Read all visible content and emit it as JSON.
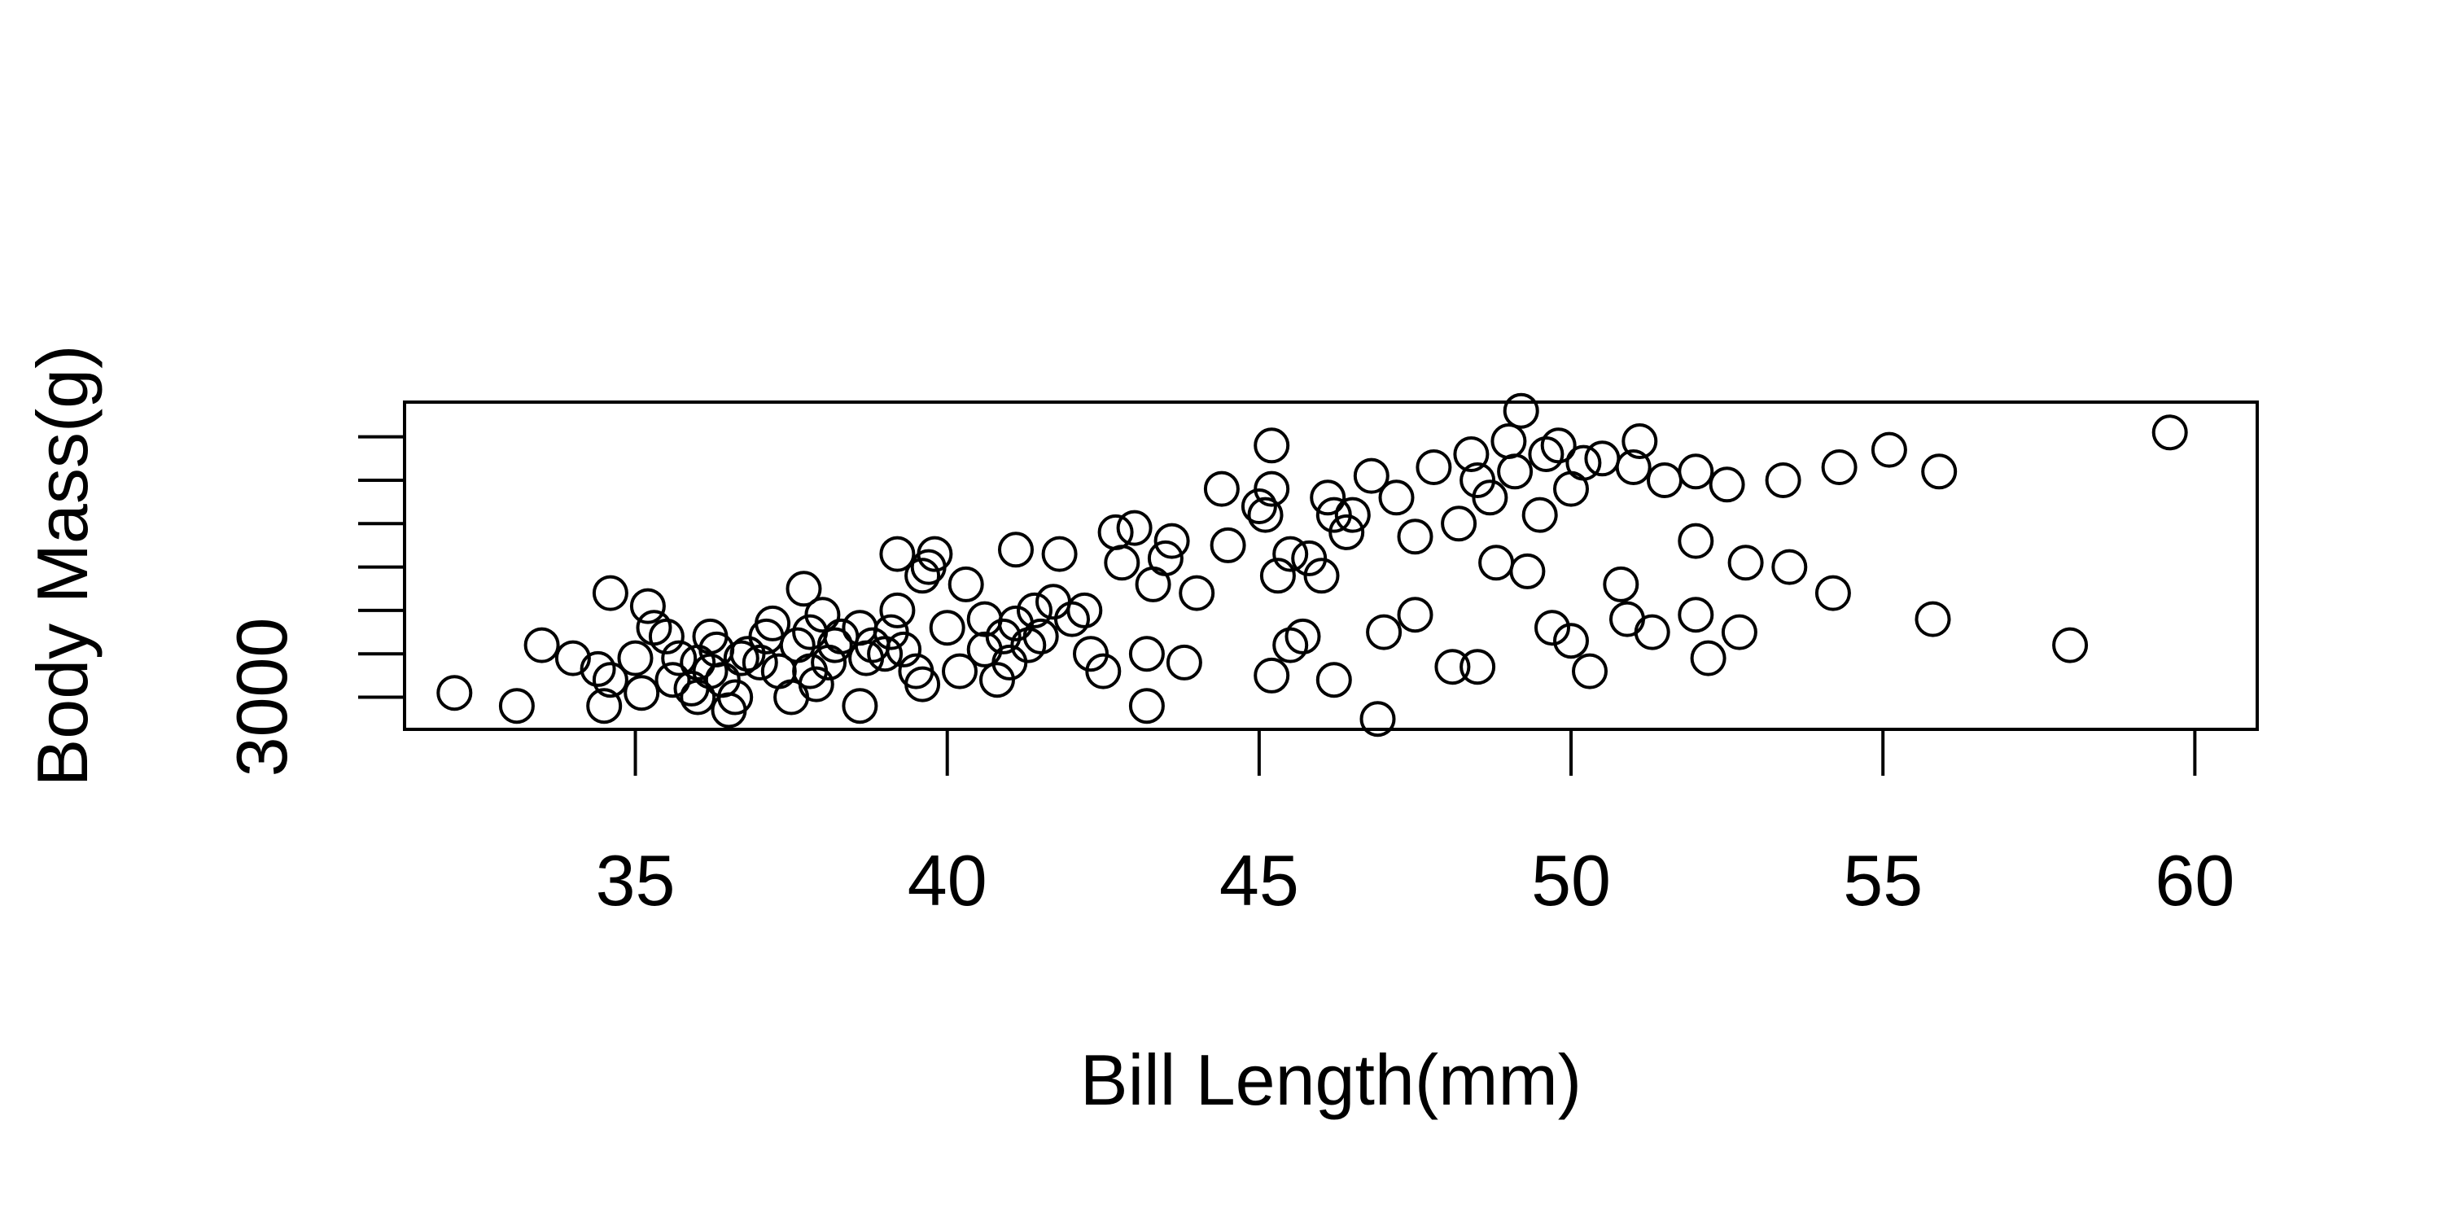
{
  "chart_data": {
    "type": "scatter",
    "xlabel": "Bill Length(mm)",
    "ylabel": "Body Mass(g)",
    "xlim": [
      31.3,
      61.0
    ],
    "ylim": [
      2630,
      6400
    ],
    "x_ticks": [
      35,
      40,
      45,
      50,
      55,
      60
    ],
    "x_tick_labels": [
      "35",
      "40",
      "45",
      "50",
      "55",
      "60"
    ],
    "y_ticks": [
      3000,
      3500,
      4000,
      4500,
      5000,
      5500,
      6000
    ],
    "y_tick_labels": [
      "3000",
      "",
      "",
      "",
      "",
      "",
      ""
    ],
    "grid": false,
    "marker": "open-circle",
    "color": "#000000",
    "points": [
      [
        32.1,
        3050
      ],
      [
        33.1,
        2900
      ],
      [
        33.5,
        3600
      ],
      [
        34.0,
        3450
      ],
      [
        34.4,
        3325
      ],
      [
        34.5,
        2900
      ],
      [
        34.6,
        4200
      ],
      [
        34.6,
        3200
      ],
      [
        35.0,
        3450
      ],
      [
        35.1,
        3050
      ],
      [
        35.2,
        4050
      ],
      [
        35.3,
        3800
      ],
      [
        35.5,
        3700
      ],
      [
        35.6,
        3200
      ],
      [
        35.7,
        3450
      ],
      [
        35.9,
        3100
      ],
      [
        36.0,
        3400
      ],
      [
        36.0,
        3000
      ],
      [
        36.2,
        3700
      ],
      [
        36.2,
        3300
      ],
      [
        36.3,
        3550
      ],
      [
        36.4,
        3200
      ],
      [
        36.5,
        2850
      ],
      [
        36.6,
        3000
      ],
      [
        36.7,
        3450
      ],
      [
        36.8,
        3500
      ],
      [
        37.0,
        3400
      ],
      [
        37.1,
        3700
      ],
      [
        37.2,
        3850
      ],
      [
        37.3,
        3300
      ],
      [
        37.5,
        3000
      ],
      [
        37.6,
        3600
      ],
      [
        37.7,
        4250
      ],
      [
        37.8,
        3750
      ],
      [
        37.8,
        3300
      ],
      [
        37.9,
        3150
      ],
      [
        38.0,
        3950
      ],
      [
        38.1,
        3400
      ],
      [
        38.2,
        3600
      ],
      [
        38.3,
        3700
      ],
      [
        38.6,
        2900
      ],
      [
        38.6,
        3800
      ],
      [
        38.7,
        3450
      ],
      [
        38.8,
        3600
      ],
      [
        39.0,
        3500
      ],
      [
        39.1,
        3750
      ],
      [
        39.2,
        4000
      ],
      [
        39.2,
        4650
      ],
      [
        39.3,
        3550
      ],
      [
        39.5,
        3300
      ],
      [
        39.6,
        3150
      ],
      [
        39.6,
        4400
      ],
      [
        39.7,
        4500
      ],
      [
        39.8,
        4650
      ],
      [
        40.0,
        3800
      ],
      [
        40.2,
        3300
      ],
      [
        40.3,
        4300
      ],
      [
        40.6,
        3550
      ],
      [
        40.6,
        3900
      ],
      [
        40.8,
        3200
      ],
      [
        40.9,
        3700
      ],
      [
        41.0,
        3400
      ],
      [
        41.1,
        3850
      ],
      [
        41.1,
        4700
      ],
      [
        41.3,
        3600
      ],
      [
        41.4,
        4000
      ],
      [
        41.5,
        3700
      ],
      [
        41.7,
        4100
      ],
      [
        41.8,
        4650
      ],
      [
        42.0,
        3900
      ],
      [
        42.2,
        4000
      ],
      [
        42.3,
        3500
      ],
      [
        42.5,
        3300
      ],
      [
        42.7,
        4900
      ],
      [
        42.8,
        4550
      ],
      [
        43.0,
        4950
      ],
      [
        43.2,
        3500
      ],
      [
        43.2,
        2900
      ],
      [
        43.3,
        4300
      ],
      [
        43.5,
        4600
      ],
      [
        43.6,
        4800
      ],
      [
        43.8,
        3400
      ],
      [
        44.0,
        4200
      ],
      [
        44.4,
        5400
      ],
      [
        44.5,
        4750
      ],
      [
        45.0,
        5200
      ],
      [
        45.1,
        5100
      ],
      [
        45.2,
        5900
      ],
      [
        45.2,
        5400
      ],
      [
        45.2,
        3250
      ],
      [
        45.3,
        4400
      ],
      [
        45.5,
        3600
      ],
      [
        45.5,
        4650
      ],
      [
        45.7,
        3700
      ],
      [
        45.8,
        4600
      ],
      [
        46.0,
        4400
      ],
      [
        46.1,
        5300
      ],
      [
        46.2,
        5100
      ],
      [
        46.2,
        3200
      ],
      [
        46.4,
        4900
      ],
      [
        46.5,
        5100
      ],
      [
        46.8,
        5550
      ],
      [
        46.9,
        2750
      ],
      [
        47.0,
        3750
      ],
      [
        47.2,
        5300
      ],
      [
        47.5,
        3950
      ],
      [
        47.5,
        4850
      ],
      [
        47.8,
        5650
      ],
      [
        48.1,
        3350
      ],
      [
        48.2,
        5000
      ],
      [
        48.4,
        5800
      ],
      [
        48.5,
        5500
      ],
      [
        48.5,
        3350
      ],
      [
        48.7,
        5300
      ],
      [
        48.8,
        4550
      ],
      [
        49.0,
        5950
      ],
      [
        49.1,
        5600
      ],
      [
        49.2,
        6300
      ],
      [
        49.3,
        4450
      ],
      [
        49.5,
        5100
      ],
      [
        49.6,
        5800
      ],
      [
        49.7,
        3800
      ],
      [
        49.8,
        5900
      ],
      [
        50.0,
        5400
      ],
      [
        50.0,
        3650
      ],
      [
        50.2,
        5700
      ],
      [
        50.3,
        3300
      ],
      [
        50.5,
        5750
      ],
      [
        50.8,
        4300
      ],
      [
        50.9,
        3900
      ],
      [
        51.0,
        5650
      ],
      [
        51.1,
        5950
      ],
      [
        51.3,
        3750
      ],
      [
        51.5,
        5500
      ],
      [
        52.0,
        4800
      ],
      [
        52.0,
        5600
      ],
      [
        52.0,
        3950
      ],
      [
        52.2,
        3450
      ],
      [
        52.5,
        5450
      ],
      [
        52.7,
        3750
      ],
      [
        52.8,
        4550
      ],
      [
        53.4,
        5500
      ],
      [
        53.5,
        4500
      ],
      [
        54.2,
        4200
      ],
      [
        54.3,
        5650
      ],
      [
        55.1,
        5850
      ],
      [
        55.8,
        3900
      ],
      [
        55.9,
        5600
      ],
      [
        58.0,
        3600
      ],
      [
        59.6,
        6050
      ]
    ]
  }
}
